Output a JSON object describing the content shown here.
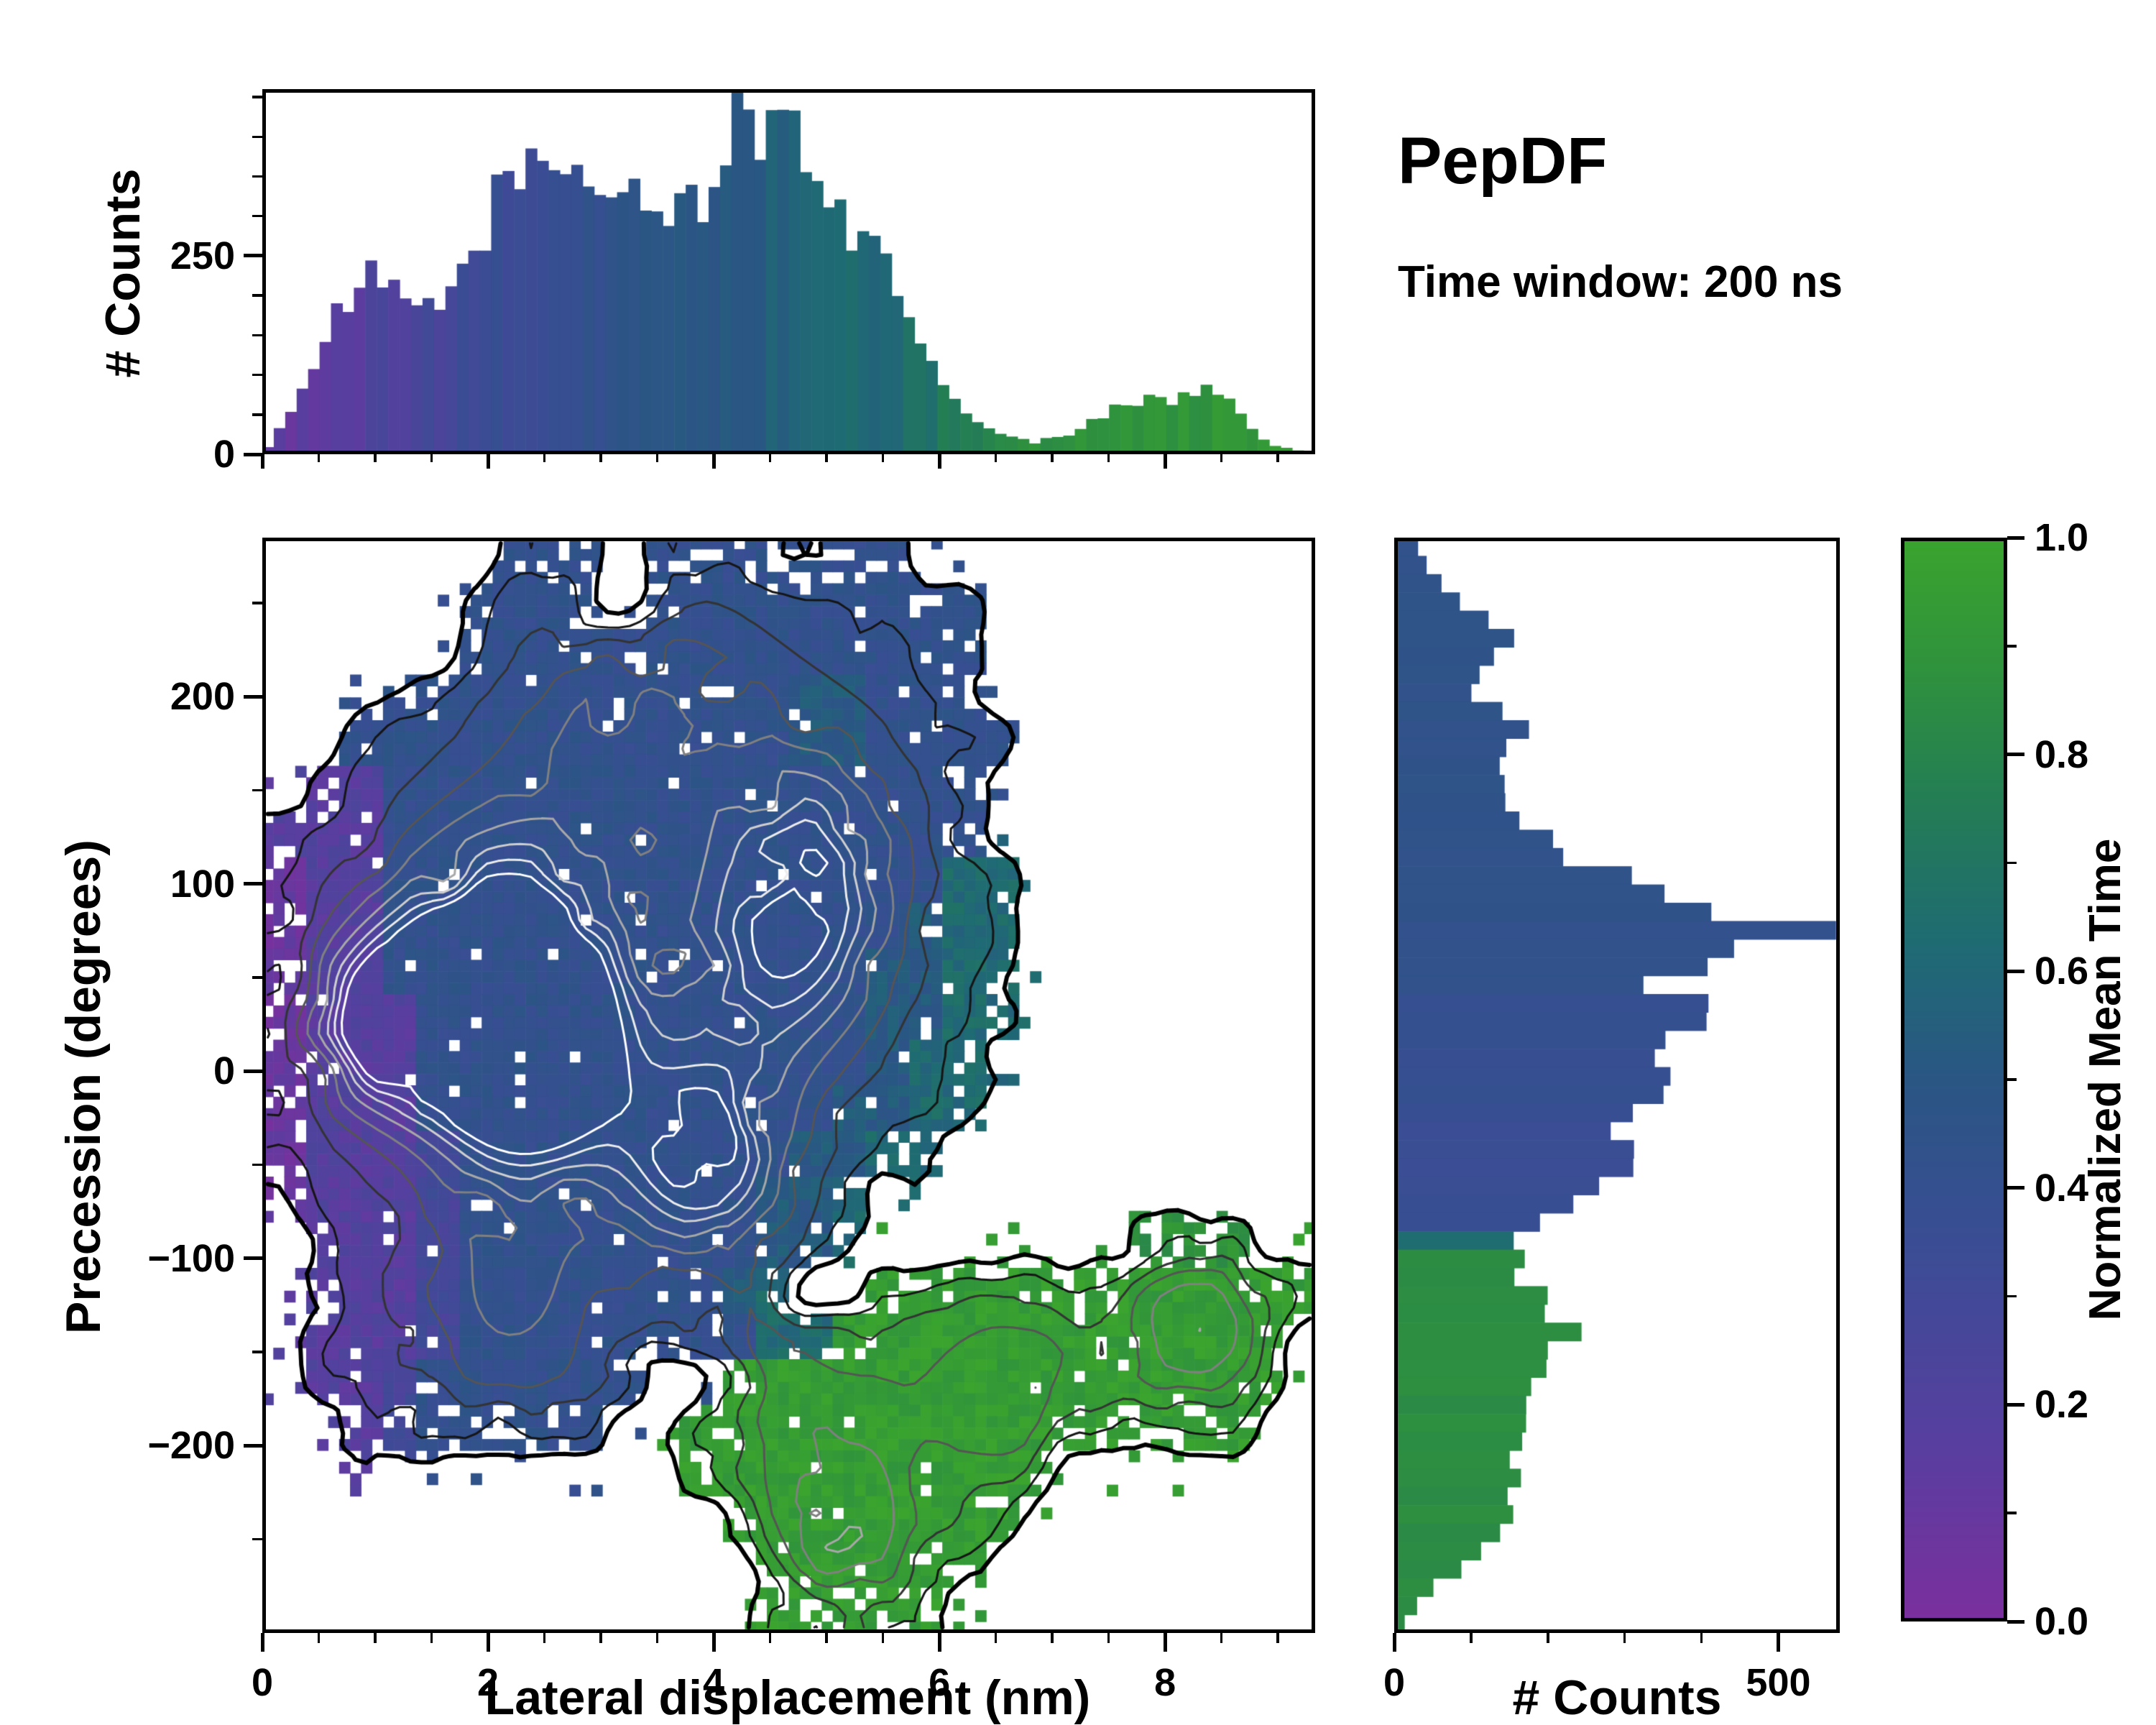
{
  "title": "PepDF",
  "subtitle": "Time window: 200 ns",
  "chart_data": {
    "type": "heatmap",
    "title": "PepDF",
    "subtitle": "Time window: 200 ns",
    "description": "2D histogram of precession angle vs lateral displacement colored by normalized mean time, with density contour lines and marginal count histograms",
    "colorbar": {
      "label": "Normalized Mean Time",
      "range": [
        0,
        1
      ],
      "ticks": [
        {
          "v": 0.0,
          "l": "0.0"
        },
        {
          "v": 0.2,
          "l": "0.2"
        },
        {
          "v": 0.4,
          "l": "0.4"
        },
        {
          "v": 0.6,
          "l": "0.6"
        },
        {
          "v": 0.8,
          "l": "0.8"
        },
        {
          "v": 1.0,
          "l": "1.0"
        }
      ],
      "minor_step": 0.1,
      "stops": [
        {
          "t": 0.0,
          "c": "#7b2f9e"
        },
        {
          "t": 0.18,
          "c": "#55409f"
        },
        {
          "t": 0.35,
          "c": "#3a4d94"
        },
        {
          "t": 0.5,
          "c": "#2a5684"
        },
        {
          "t": 0.62,
          "c": "#1f6a74"
        },
        {
          "t": 0.75,
          "c": "#237c56"
        },
        {
          "t": 0.88,
          "c": "#2f923d"
        },
        {
          "t": 1.0,
          "c": "#3aa42e"
        }
      ]
    },
    "top_histogram": {
      "type": "bar",
      "ylabel": "# Counts",
      "y_ticks": [
        {
          "v": 0,
          "l": "0"
        },
        {
          "v": 250,
          "l": "250"
        }
      ],
      "y_minor_step": 50,
      "y_range": [
        0,
        460
      ],
      "x_range": [
        0,
        9.33
      ],
      "bin_width": 0.1014,
      "counts": [
        10,
        30,
        60,
        90,
        110,
        140,
        170,
        190,
        210,
        220,
        210,
        200,
        190,
        185,
        180,
        190,
        210,
        230,
        260,
        290,
        320,
        340,
        370,
        360,
        350,
        355,
        350,
        345,
        340,
        330,
        340,
        360,
        330,
        310,
        300,
        310,
        320,
        310,
        330,
        360,
        400,
        410,
        390,
        400,
        420,
        430,
        410,
        380,
        350,
        320,
        310,
        290,
        270,
        250,
        230,
        210,
        180,
        150,
        120,
        90,
        70,
        50,
        40,
        30,
        25,
        20,
        20,
        15,
        20,
        20,
        25,
        30,
        40,
        50,
        60,
        70,
        65,
        75,
        70,
        65,
        70,
        80,
        90,
        85,
        70,
        50,
        30,
        20,
        10,
        8,
        5,
        3
      ],
      "color_profile": [
        [
          0,
          0.1
        ],
        [
          0.8,
          0.18
        ],
        [
          1.5,
          0.26
        ],
        [
          2.2,
          0.36
        ],
        [
          3.0,
          0.42
        ],
        [
          4.0,
          0.5
        ],
        [
          5.0,
          0.58
        ],
        [
          5.8,
          0.66
        ],
        [
          6.3,
          0.78
        ],
        [
          6.8,
          0.88
        ],
        [
          9.33,
          0.92
        ]
      ]
    },
    "main_panel": {
      "type": "heatmap",
      "xlabel": "Lateral displacement (nm)",
      "ylabel": "Precession (degrees)",
      "x_range": [
        0,
        9.33
      ],
      "y_range": [
        -300,
        285
      ],
      "x_ticks": [
        {
          "v": 0,
          "l": "0"
        },
        {
          "v": 2,
          "l": "2"
        },
        {
          "v": 4,
          "l": "4"
        },
        {
          "v": 6,
          "l": "6"
        },
        {
          "v": 8,
          "l": "8"
        }
      ],
      "x_minor_step": 0.5,
      "y_ticks": [
        {
          "v": 200,
          "l": "200"
        },
        {
          "v": 100,
          "l": "100"
        },
        {
          "v": 0,
          "l": "0"
        },
        {
          "v": -100,
          "l": "−100"
        },
        {
          "v": -200,
          "l": "−200"
        }
      ],
      "y_minor_step": 50,
      "value_legend": {
        ".": null,
        "a": 0.08,
        "b": 0.18,
        "c": 0.28,
        "d": 0.42,
        "e": 0.52,
        "f": 0.62,
        "g": 0.72,
        "h": 0.8,
        "i": 0.88,
        "j": 0.95
      },
      "grid_cols": 28,
      "grid_rows": 24,
      "value_grid": [
        "......ddd.ddddddd...........",
        ".....dddd.ddddddddd.........",
        ".....dddddddddddddd.........",
        "...dddddddddddeeddd.........",
        "..ddddddddddddeedddd........",
        ".bbdddddddddddddddd.........",
        "bbbdddddddddddddddd.........",
        "abbdddddddddddddddff........",
        "abbddddddddddddddeff........",
        "abbdddddddddddddeeff........",
        "abbbddddddddddddeeff........",
        "abbbddddddddddddeff.........",
        "abbbdddddddddddeeff.........",
        "abbbcdddddddddeeff..........",
        "abbbcddddddddeef............",
        ".bbbcddddddddeef.......iii..",
        ".bbbcdddddddef..jjjjjjjjjjjj",
        ".bbbcddddddddffjjjjjjjjjjjj.",
        ".bbcdddddd..jjjjjjjjjjjjjjj.",
        "..bcddddd..jjjjjjjjjjjjjjj..",
        "...........jjjjjjjjjj.......",
        "............jjjjjjjj........",
        ".............jjjjjj.........",
        ".............jjjjj.........."
      ],
      "density_hotspots": [
        {
          "x": 2.1,
          "y": 60,
          "a": 1.0,
          "sx": 0.8,
          "sy": 55
        },
        {
          "x": 2.35,
          "y": 5,
          "a": 0.9,
          "sx": 0.6,
          "sy": 40
        },
        {
          "x": 1.0,
          "y": 25,
          "a": 0.75,
          "sx": 0.5,
          "sy": 35
        },
        {
          "x": 3.9,
          "y": -45,
          "a": 0.85,
          "sx": 0.55,
          "sy": 40
        },
        {
          "x": 4.6,
          "y": 60,
          "a": 0.7,
          "sx": 0.7,
          "sy": 50
        },
        {
          "x": 3.4,
          "y": 185,
          "a": 0.5,
          "sx": 0.9,
          "sy": 50
        },
        {
          "x": 5.0,
          "y": 125,
          "a": 0.45,
          "sx": 0.6,
          "sy": 45
        },
        {
          "x": 2.2,
          "y": -120,
          "a": 0.45,
          "sx": 0.8,
          "sy": 60
        },
        {
          "x": 8.3,
          "y": -135,
          "a": 0.55,
          "sx": 0.5,
          "sy": 35
        },
        {
          "x": 6.6,
          "y": -170,
          "a": 0.4,
          "sx": 0.7,
          "sy": 45
        },
        {
          "x": 5.15,
          "y": -250,
          "a": 0.55,
          "sx": 0.5,
          "sy": 40
        },
        {
          "x": 4.7,
          "y": -160,
          "a": 0.35,
          "sx": 0.6,
          "sy": 45
        }
      ],
      "contour_levels": [
        0.14,
        0.3,
        0.45,
        0.58,
        0.7,
        0.82,
        0.92,
        1.0,
        1.08
      ],
      "contour_colors": [
        "#000000",
        "#151515",
        "#333333",
        "#555555",
        "#808080",
        "#a8a8a8",
        "#cfcfcf",
        "#ececec",
        "#ffffff"
      ]
    },
    "right_histogram": {
      "type": "bar-horizontal",
      "xlabel": "# Counts",
      "x_ticks": [
        {
          "v": 0,
          "l": "0"
        },
        {
          "v": 500,
          "l": "500"
        }
      ],
      "x_minor_step": 100,
      "x_range": [
        0,
        580
      ],
      "y_range": [
        -300,
        285
      ],
      "counts": [
        30,
        45,
        60,
        90,
        120,
        150,
        140,
        110,
        100,
        130,
        160,
        150,
        130,
        140,
        160,
        180,
        200,
        240,
        300,
        340,
        420,
        560,
        420,
        380,
        350,
        400,
        380,
        340,
        360,
        380,
        350,
        330,
        300,
        330,
        300,
        260,
        220,
        180,
        150,
        160,
        170,
        190,
        210,
        230,
        220,
        200,
        180,
        170,
        175,
        165,
        160,
        155,
        150,
        145,
        130,
        110,
        80,
        50,
        30,
        15
      ],
      "mean_time": [
        0.45,
        0.45,
        0.45,
        0.45,
        0.45,
        0.45,
        0.45,
        0.45,
        0.45,
        0.45,
        0.45,
        0.45,
        0.45,
        0.45,
        0.45,
        0.45,
        0.45,
        0.45,
        0.45,
        0.45,
        0.44,
        0.43,
        0.42,
        0.42,
        0.41,
        0.4,
        0.4,
        0.39,
        0.39,
        0.38,
        0.38,
        0.37,
        0.36,
        0.36,
        0.35,
        0.35,
        0.35,
        0.36,
        0.62,
        0.85,
        0.85,
        0.85,
        0.85,
        0.85,
        0.85,
        0.85,
        0.85,
        0.85,
        0.85,
        0.85,
        0.85,
        0.85,
        0.85,
        0.85,
        0.85,
        0.85,
        0.85,
        0.85,
        0.85,
        0.85
      ]
    }
  }
}
